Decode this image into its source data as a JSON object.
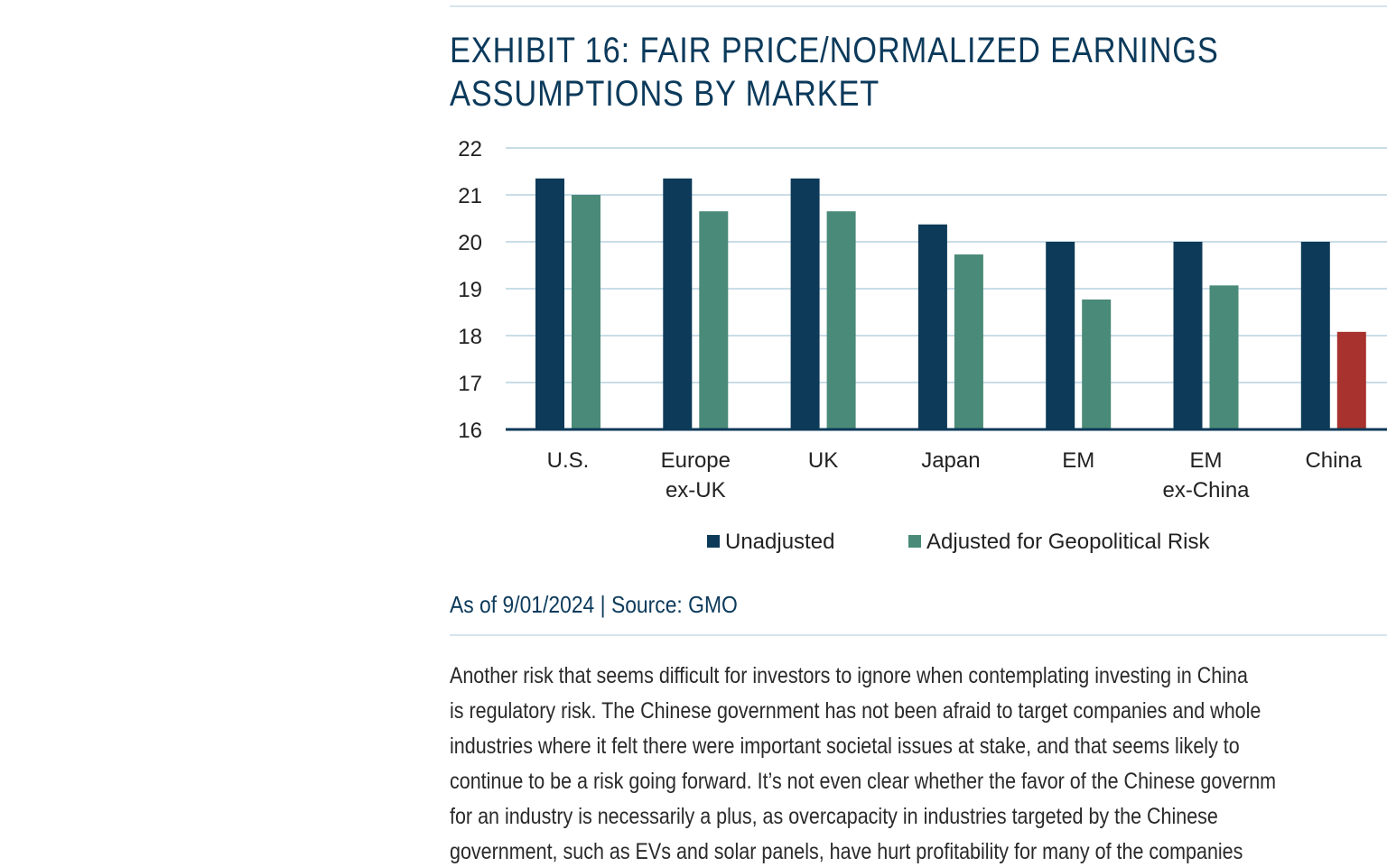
{
  "exhibit": {
    "title_line1": "EXHIBIT 16: FAIR PRICE/NORMALIZED EARNINGS",
    "title_line2": "ASSUMPTIONS BY MARKET"
  },
  "chart_data": {
    "type": "bar",
    "categories": [
      [
        "U.S."
      ],
      [
        "Europe",
        "ex-UK"
      ],
      [
        "UK"
      ],
      [
        "Japan"
      ],
      [
        "EM"
      ],
      [
        "EM",
        "ex-China"
      ],
      [
        "China"
      ]
    ],
    "series": [
      {
        "name": "Unadjusted",
        "color": "#0d3a58",
        "values": [
          21.35,
          21.35,
          21.35,
          20.37,
          20.0,
          20.0,
          20.0
        ]
      },
      {
        "name": "Adjusted for Geopolitical Risk",
        "color": "#4a8a78",
        "values": [
          21.0,
          20.65,
          20.65,
          19.73,
          18.77,
          19.07,
          18.08
        ]
      }
    ],
    "highlight": {
      "series": 1,
      "category": 6,
      "color": "#a8322d"
    },
    "yticks": [
      "22",
      "21",
      "20",
      "19",
      "18",
      "17",
      "16"
    ],
    "ylim": [
      16,
      22
    ],
    "grid": true,
    "legend_position": "bottom-center"
  },
  "source": "As of 9/01/2024 | Source: GMO",
  "body_lines": [
    "Another risk that seems difficult for investors to ignore when contemplating investing in China",
    "is regulatory risk. The Chinese government has not been afraid to target companies and whole",
    "industries where it felt there were important societal issues at stake, and that seems likely to",
    "continue to be a risk going forward. It’s not even clear whether the favor of the Chinese governm",
    "for an industry is necessarily a plus, as overcapacity in industries targeted by the Chinese",
    "government, such as EVs and solar panels, have hurt profitability for many of the companies"
  ]
}
